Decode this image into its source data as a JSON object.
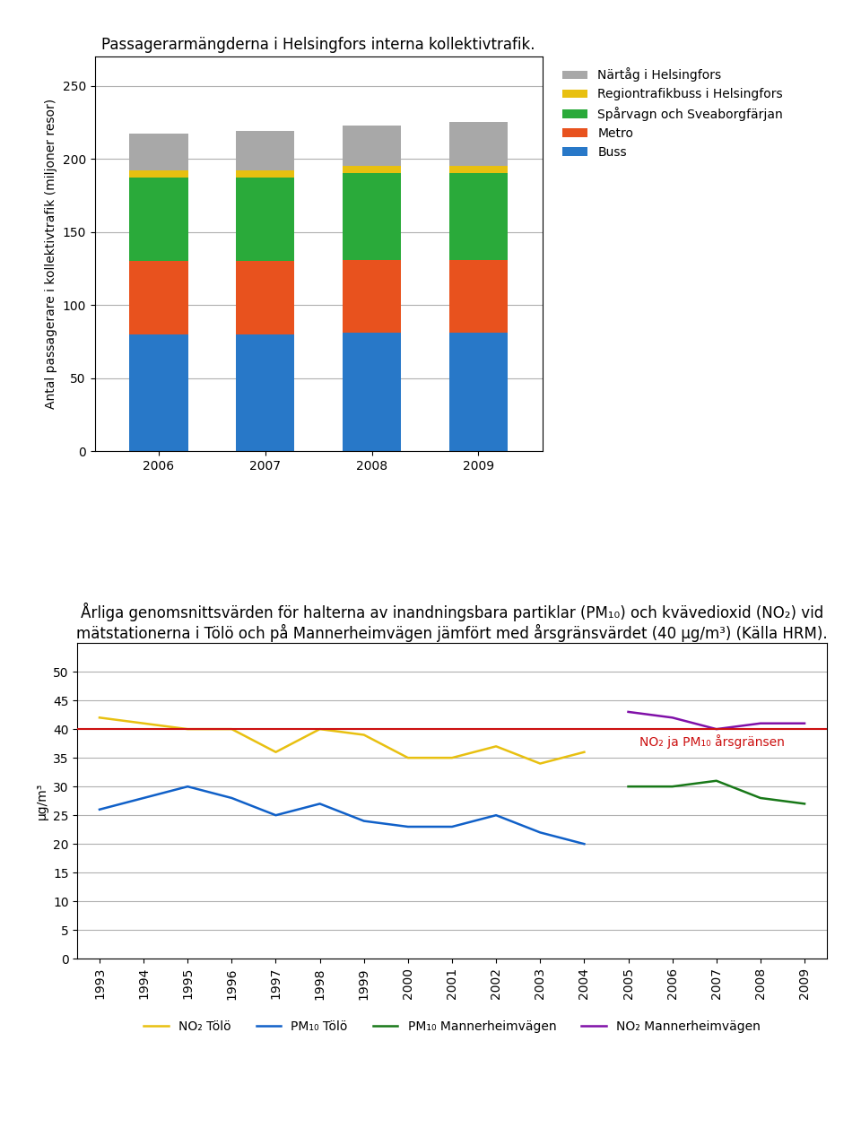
{
  "chart_data": [
    {
      "type": "bar",
      "stacked": true,
      "title": "Passagerarmängderna i Helsingfors interna kollektivtrafik.",
      "ylabel": "Antal passagerare i kollektivtrafik (miljoner resor)",
      "categories": [
        "2006",
        "2007",
        "2008",
        "2009"
      ],
      "series": [
        {
          "name": "Buss",
          "color": "#2878c8",
          "values": [
            80,
            80,
            81,
            81
          ]
        },
        {
          "name": "Metro",
          "color": "#e8521e",
          "values": [
            50,
            50,
            50,
            50
          ]
        },
        {
          "name": "Spårvagn och Sveaborgfärjan",
          "color": "#2aaa3a",
          "values": [
            57,
            57,
            59,
            59
          ]
        },
        {
          "name": "Regiontrafikbuss i Helsingfors",
          "color": "#e8c010",
          "values": [
            5,
            5,
            5,
            5
          ]
        },
        {
          "name": "Närtåg i Helsingfors",
          "color": "#a8a8a8",
          "values": [
            25,
            27,
            28,
            30
          ]
        }
      ],
      "ylim": [
        0,
        270
      ],
      "yticks": [
        0,
        50,
        100,
        150,
        200,
        250
      ],
      "grid": true,
      "legend": "upper left"
    },
    {
      "type": "line",
      "title": "Årliga genomsnittsvärden för halterna av inandningsbara partiklar (PM₁₀) och kvävedioxid (NO₂) vid mätstationerna i Tölö och på Mannerheimvägen jämfört med årsgränsvärdet (40 µg/m³) (Källa HRM).",
      "ylabel": "µg/m³",
      "x": [
        1993,
        1994,
        1995,
        1996,
        1997,
        1998,
        1999,
        2000,
        2001,
        2002,
        2003,
        2004,
        2005,
        2006,
        2007,
        2008,
        2009
      ],
      "series": [
        {
          "name": "NO₂ Tölö",
          "color": "#e8c010",
          "values": [
            42,
            41,
            40,
            40,
            36,
            40,
            39,
            35,
            35,
            37,
            34,
            36,
            null,
            null,
            null,
            null,
            null
          ]
        },
        {
          "name": "PM₁₀ Tölö",
          "color": "#1060c8",
          "values": [
            26,
            28,
            30,
            28,
            25,
            27,
            24,
            23,
            23,
            25,
            22,
            20,
            null,
            null,
            null,
            null,
            null
          ]
        },
        {
          "name": "PM₁₀ Mannerheimvägen",
          "color": "#187818",
          "values": [
            null,
            null,
            null,
            null,
            null,
            null,
            null,
            null,
            null,
            null,
            null,
            null,
            30,
            30,
            31,
            28,
            27
          ]
        },
        {
          "name": "NO₂ Mannerheimvägen",
          "color": "#8010a8",
          "values": [
            null,
            null,
            null,
            null,
            null,
            null,
            null,
            null,
            null,
            null,
            null,
            null,
            43,
            42,
            40,
            41,
            41
          ]
        }
      ],
      "reference_line": {
        "y": 40,
        "label": "NO₂ ja PM₁₀ årsgränsen",
        "color": "#cc1010"
      },
      "xlim": [
        1992.5,
        2009.5
      ],
      "xticks": [
        1993,
        1994,
        1995,
        1996,
        1997,
        1998,
        1999,
        2000,
        2001,
        2002,
        2003,
        2004,
        2005,
        2006,
        2007,
        2008,
        2009
      ],
      "ylim": [
        0,
        55
      ],
      "yticks": [
        0,
        5,
        10,
        15,
        20,
        25,
        30,
        35,
        40,
        45,
        50
      ],
      "grid": true,
      "legend": "upper center"
    }
  ]
}
